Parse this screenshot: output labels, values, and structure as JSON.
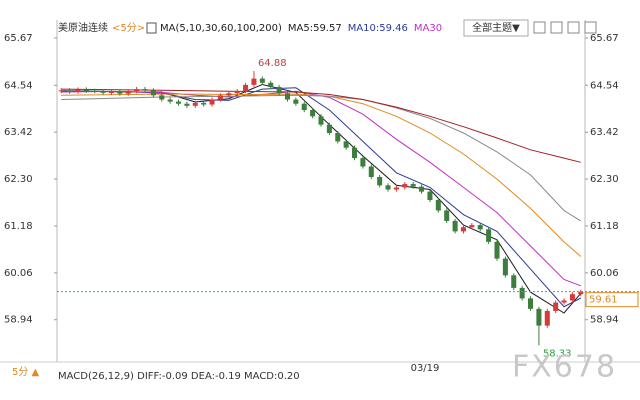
{
  "chart_data": {
    "type": "candlestick",
    "title": "美原油连续",
    "period": "<5分>",
    "ma_legend": [
      "MA(5,10,30,60,100,200)",
      "MA5:59.57",
      "MA10:59.46",
      "MA30"
    ],
    "ma_legend_colors": [
      "#222222",
      "#222222",
      "#2a3a9a",
      "#c030c0"
    ],
    "theme_button": "全部主题▼",
    "bottom_period": "5分 ▲",
    "indicator": "MACD(26,12,9) DIFF:-0.09 DEA:-0.19 MACD:0.20",
    "x_label": "03/19",
    "watermark": "FX678",
    "up_color": "#d83a3a",
    "down_color": "#3d7d3d",
    "price_line_color": "#20b0c0",
    "open": [
      64.4,
      64.42,
      64.39,
      64.44,
      64.41,
      64.4,
      64.36,
      64.38,
      64.34,
      64.4,
      64.45,
      64.42,
      64.3,
      64.2,
      64.15,
      64.1,
      64.05,
      64.12,
      64.08,
      64.2,
      64.3,
      64.35,
      64.4,
      64.55,
      64.7,
      64.6,
      64.5,
      64.35,
      64.2,
      64.1,
      63.95,
      63.8,
      63.6,
      63.4,
      63.2,
      63.05,
      62.8,
      62.6,
      62.35,
      62.15,
      62.05,
      62.1,
      62.18,
      62.12,
      62.0,
      61.8,
      61.55,
      61.3,
      61.05,
      61.15,
      61.2,
      61.1,
      60.8,
      60.4,
      60.0,
      59.7,
      59.45,
      59.2,
      58.8,
      59.15,
      59.35,
      59.4,
      59.55
    ],
    "high": [
      64.47,
      64.47,
      64.49,
      64.49,
      64.46,
      64.45,
      64.43,
      64.43,
      64.45,
      64.5,
      64.5,
      64.47,
      64.35,
      64.25,
      64.2,
      64.15,
      64.17,
      64.17,
      64.25,
      64.35,
      64.4,
      64.45,
      64.6,
      64.88,
      64.75,
      64.65,
      64.55,
      64.4,
      64.25,
      64.15,
      64.0,
      63.85,
      63.65,
      63.45,
      63.25,
      63.1,
      62.85,
      62.65,
      62.4,
      62.2,
      62.15,
      62.23,
      62.23,
      62.17,
      62.05,
      61.85,
      61.6,
      61.35,
      61.2,
      61.25,
      61.25,
      61.15,
      60.85,
      60.45,
      60.05,
      59.75,
      59.5,
      59.25,
      59.2,
      59.4,
      59.45,
      59.6,
      59.66
    ],
    "low": [
      64.35,
      64.34,
      64.34,
      64.36,
      64.35,
      64.31,
      64.31,
      64.29,
      64.29,
      64.35,
      64.37,
      64.25,
      64.15,
      64.1,
      64.05,
      64.0,
      64.0,
      64.03,
      64.03,
      64.15,
      64.25,
      64.3,
      64.35,
      64.5,
      64.55,
      64.45,
      64.3,
      64.15,
      64.05,
      63.9,
      63.75,
      63.55,
      63.35,
      63.15,
      63.0,
      62.75,
      62.55,
      62.3,
      62.1,
      62.0,
      62.0,
      62.05,
      62.07,
      61.95,
      61.75,
      61.5,
      61.25,
      61.0,
      61.0,
      61.1,
      61.05,
      60.75,
      60.35,
      59.95,
      59.65,
      59.4,
      59.15,
      58.33,
      58.75,
      59.1,
      59.3,
      59.35,
      59.5
    ],
    "close": [
      64.42,
      64.39,
      64.44,
      64.41,
      64.4,
      64.36,
      64.38,
      64.34,
      64.4,
      64.45,
      64.42,
      64.3,
      64.2,
      64.15,
      64.1,
      64.05,
      64.12,
      64.08,
      64.2,
      64.3,
      64.35,
      64.4,
      64.55,
      64.7,
      64.6,
      64.5,
      64.35,
      64.2,
      64.1,
      63.95,
      63.8,
      63.6,
      63.4,
      63.2,
      63.05,
      62.8,
      62.6,
      62.35,
      62.15,
      62.05,
      62.1,
      62.18,
      62.12,
      62.0,
      61.8,
      61.55,
      61.3,
      61.05,
      61.15,
      61.2,
      61.1,
      60.8,
      60.4,
      60.0,
      59.7,
      59.45,
      59.2,
      58.8,
      59.15,
      59.35,
      59.4,
      59.55,
      59.61
    ],
    "ma_lines": [
      {
        "color": "#1a1a1a",
        "x": [
          0,
          4,
          8,
          12,
          16,
          20,
          24,
          28,
          32,
          36,
          40,
          44,
          48,
          52,
          56,
          60,
          62
        ],
        "values": [
          64.41,
          64.4,
          64.38,
          64.38,
          64.14,
          64.22,
          64.56,
          64.37,
          63.6,
          62.85,
          62.15,
          62.05,
          61.2,
          60.85,
          59.6,
          59.1,
          59.57
        ]
      },
      {
        "color": "#2a3a9a",
        "x": [
          0,
          4,
          8,
          12,
          16,
          20,
          24,
          28,
          32,
          36,
          40,
          44,
          48,
          52,
          56,
          60,
          62
        ],
        "values": [
          64.4,
          64.4,
          64.39,
          64.35,
          64.2,
          64.18,
          64.45,
          64.48,
          63.95,
          63.2,
          62.45,
          62.1,
          61.45,
          61.05,
          60.15,
          59.25,
          59.46
        ]
      },
      {
        "color": "#c030c0",
        "x": [
          0,
          4,
          8,
          12,
          16,
          20,
          24,
          28,
          32,
          36,
          40,
          44,
          48,
          52,
          56,
          60,
          62
        ],
        "values": [
          64.38,
          64.39,
          64.39,
          64.37,
          64.3,
          64.26,
          64.32,
          64.4,
          64.25,
          63.85,
          63.25,
          62.7,
          62.1,
          61.5,
          60.7,
          59.9,
          59.75
        ]
      },
      {
        "color": "#e08a20",
        "x": [
          0,
          4,
          8,
          12,
          16,
          20,
          24,
          28,
          32,
          36,
          40,
          44,
          48,
          52,
          56,
          60,
          62
        ],
        "values": [
          64.3,
          64.31,
          64.32,
          64.33,
          64.33,
          64.32,
          64.32,
          64.33,
          64.28,
          64.1,
          63.8,
          63.4,
          62.9,
          62.3,
          61.6,
          60.8,
          60.45
        ]
      },
      {
        "color": "#888888",
        "x": [
          0,
          4,
          8,
          12,
          16,
          20,
          24,
          28,
          32,
          36,
          40,
          44,
          48,
          52,
          56,
          60,
          62
        ],
        "values": [
          64.2,
          64.22,
          64.24,
          64.26,
          64.27,
          64.28,
          64.29,
          64.3,
          64.28,
          64.2,
          64.0,
          63.75,
          63.4,
          62.95,
          62.4,
          61.55,
          61.3
        ]
      },
      {
        "color": "#a02020",
        "x": [
          0,
          4,
          8,
          12,
          16,
          20,
          24,
          28,
          32,
          36,
          40,
          44,
          48,
          52,
          56,
          60,
          62
        ],
        "values": [
          64.45,
          64.44,
          64.43,
          64.42,
          64.41,
          64.4,
          64.39,
          64.38,
          64.32,
          64.2,
          64.02,
          63.8,
          63.55,
          63.28,
          63.0,
          62.8,
          62.7
        ]
      }
    ],
    "ylim": [
      57.93,
      66.1
    ],
    "yticks": [
      65.67,
      64.54,
      63.42,
      {
        "value": 62.3,
        "label": "62.30"
      },
      61.18,
      60.06,
      58.94
    ]
  }
}
